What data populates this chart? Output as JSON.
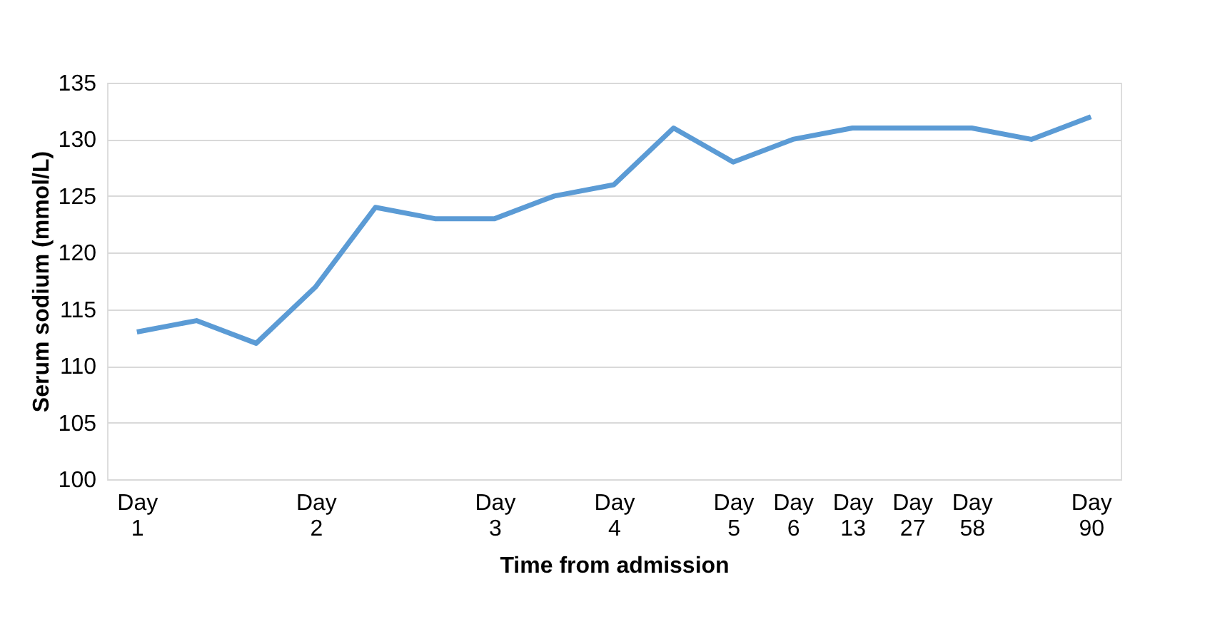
{
  "chart_data": {
    "type": "line",
    "xlabel": "Time from admission",
    "ylabel": "Serum sodium (mmol/L)",
    "categories": [
      "Day 1",
      null,
      null,
      "Day 2",
      null,
      null,
      "Day 3",
      null,
      "Day 4",
      null,
      "Day 5",
      "Day 6",
      "Day 13",
      "Day 27",
      "Day 58",
      null,
      "Day 90"
    ],
    "series": [
      {
        "color": "#5b9bd5",
        "values": [
          113,
          114,
          112,
          117,
          124,
          123,
          123,
          125,
          126,
          131,
          128,
          130,
          131,
          131,
          131,
          130,
          132
        ]
      }
    ],
    "ylim": [
      100,
      135
    ],
    "yticks": [
      100,
      105,
      110,
      115,
      120,
      125,
      130,
      135
    ],
    "grid": "y",
    "legend": false,
    "marker": "none",
    "line_style": "solid"
  }
}
